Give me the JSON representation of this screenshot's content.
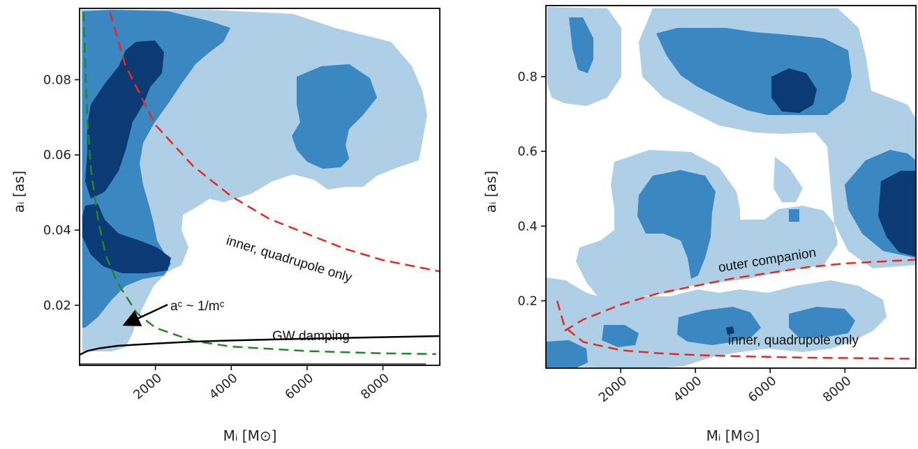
{
  "colors": {
    "level1": "#aecfe6",
    "level2": "#3b87c2",
    "level3": "#0b3a75",
    "red_curve": "#e8281f",
    "green_curve": "#1f8a1f",
    "black_curve": "#000000"
  },
  "chart_data": [
    {
      "type": "heatmap",
      "xlabel": "Mᵢ [M⊙]",
      "ylabel": "aᵢ [as]",
      "xlim": [
        0,
        9500
      ],
      "ylim": [
        0.004,
        0.099
      ],
      "xticks": [
        2000,
        4000,
        6000,
        8000
      ],
      "xtick_labels": [
        "2000",
        "4000",
        "6000",
        "8000"
      ],
      "yticks": [
        0.02,
        0.04,
        0.06,
        0.08
      ],
      "ytick_labels": [
        "0.02",
        "0.04",
        "0.06",
        "0.08"
      ],
      "grid": false,
      "contour_levels": 3,
      "curves": [
        {
          "label": "inner, quadrupole only",
          "color": "#e8281f",
          "style": "dashed",
          "x": [
            800,
            1200,
            2000,
            3000,
            4000,
            5000,
            6000,
            7000,
            8000,
            9500
          ],
          "y": [
            0.098,
            0.084,
            0.068,
            0.057,
            0.049,
            0.043,
            0.039,
            0.035,
            0.032,
            0.029
          ]
        },
        {
          "label": "aᶜ ~ 1/mᶜ",
          "color": "#1f8a1f",
          "style": "dashed",
          "x": [
            100,
            200,
            300,
            500,
            700,
            1000,
            1500,
            2000,
            3000,
            4000,
            6000,
            8000,
            9400
          ],
          "y": [
            0.098,
            0.07,
            0.056,
            0.042,
            0.033,
            0.026,
            0.018,
            0.014,
            0.0105,
            0.009,
            0.0078,
            0.0072,
            0.007
          ]
        },
        {
          "label": "GW damping",
          "color": "#000000",
          "style": "solid",
          "x": [
            0,
            200,
            500,
            1000,
            2000,
            3000,
            4000,
            6000,
            8000,
            9500
          ],
          "y": [
            0.0068,
            0.0078,
            0.0085,
            0.0092,
            0.0098,
            0.0103,
            0.0106,
            0.0111,
            0.0115,
            0.0118
          ]
        }
      ],
      "annotations": [
        "inner, quadrupole only",
        "aᶜ ~ 1/mᶜ",
        "GW damping"
      ]
    },
    {
      "type": "heatmap",
      "xlabel": "Mᵢ [M⊙]",
      "ylabel": "aᵢ [as]",
      "xlim": [
        0,
        9900
      ],
      "ylim": [
        0.02,
        0.99
      ],
      "xticks": [
        2000,
        4000,
        6000,
        8000
      ],
      "xtick_labels": [
        "2000",
        "4000",
        "6000",
        "8000"
      ],
      "yticks": [
        0.2,
        0.4,
        0.6,
        0.8
      ],
      "ytick_labels": [
        "0.2",
        "0.4",
        "0.6",
        "0.8"
      ],
      "grid": false,
      "contour_levels": 3,
      "curves": [
        {
          "label": "outer companion",
          "color": "#e8281f",
          "style": "dashed",
          "x": [
            500,
            1000,
            2000,
            3000,
            4000,
            5000,
            6000,
            7000,
            8000,
            9900
          ],
          "y": [
            0.12,
            0.15,
            0.19,
            0.22,
            0.24,
            0.26,
            0.275,
            0.29,
            0.3,
            0.31
          ]
        },
        {
          "label": "inner, quadrupole only",
          "color": "#e8281f",
          "style": "dashed",
          "x": [
            300,
            500,
            1000,
            2000,
            3000,
            4000,
            5000,
            6000,
            7000,
            8000,
            9900
          ],
          "y": [
            0.2,
            0.13,
            0.09,
            0.068,
            0.06,
            0.055,
            0.052,
            0.05,
            0.048,
            0.047,
            0.045
          ]
        }
      ],
      "annotations": [
        "outer companion",
        "inner, quadrupole only"
      ]
    }
  ],
  "left": {
    "xlabel": "Mᵢ [M⊙]",
    "ylabel": "aᵢ [as]",
    "ann_red": "inner, quadrupole only",
    "ann_green": "aᶜ ~ 1/mᶜ",
    "ann_gw": "GW damping"
  },
  "right": {
    "xlabel": "Mᵢ [M⊙]",
    "ylabel": "aᵢ [as]",
    "ann_outer": "outer companion",
    "ann_inner": "inner, quadrupole only"
  }
}
